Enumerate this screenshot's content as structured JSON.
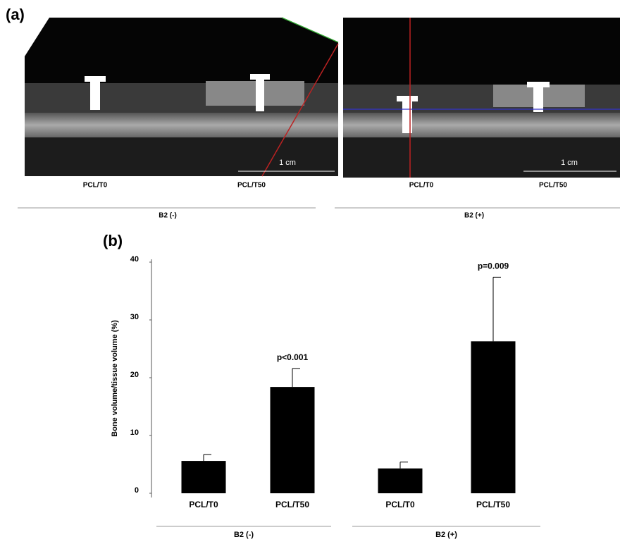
{
  "panel_a": {
    "label": "(a)",
    "scale_bars": [
      "1 cm",
      "1 cm"
    ],
    "image_labels": [
      [
        "PCL/T0",
        "PCL/T50"
      ],
      [
        "PCL/T0",
        "PCL/T50"
      ]
    ],
    "groups": [
      "B2 (-)",
      "B2 (+)"
    ]
  },
  "chart_data": {
    "type": "bar",
    "panel_label": "(b)",
    "ylabel": "Bone volume/tissue volume (%)",
    "categories": [
      "PCL/T0",
      "PCL/T50",
      "PCL/T0",
      "PCL/T50"
    ],
    "values": [
      5.6,
      18.4,
      4.3,
      26.3
    ],
    "errors": [
      1.1,
      3.2,
      1.1,
      11.1
    ],
    "value_annotations": [
      null,
      "p<0.001",
      null,
      "p=0.009"
    ],
    "groups": [
      "B2 (-)",
      "B2 (+)"
    ],
    "color": "#000000",
    "ylim": [
      0,
      40
    ],
    "yticks": [
      0,
      10,
      20,
      30,
      40
    ],
    "grid": false
  }
}
